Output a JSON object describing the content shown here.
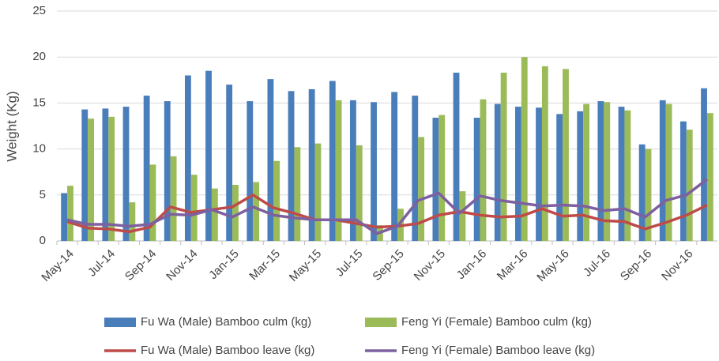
{
  "chart_data": {
    "type": "bar",
    "y_label": "Weight (Kg)",
    "categories": [
      "May-14",
      null,
      "Jul-14",
      null,
      "Sep-14",
      null,
      "Nov-14",
      null,
      "Jan-15",
      null,
      "Mar-15",
      null,
      "May-15",
      null,
      "Jul-15",
      null,
      "Sep-15",
      null,
      "Nov-15",
      null,
      "Jan-16",
      null,
      "Mar-16",
      null,
      "May-16",
      null,
      "Jul-16",
      null,
      "Sep-16",
      null,
      "Nov-16",
      null
    ],
    "series": [
      {
        "name": "Fu Wa (Male) Bamboo culm (kg)",
        "type": "bar",
        "color": "#4a7ebb",
        "values": [
          5.2,
          14.3,
          14.4,
          14.6,
          15.8,
          15.2,
          18,
          18.5,
          17,
          15.2,
          17.6,
          16.3,
          16.5,
          17.4,
          15.3,
          15.1,
          16.2,
          15.8,
          13.4,
          18.3,
          13.4,
          14.9,
          14.6,
          14.5,
          13.8,
          14.1,
          15.2,
          14.6,
          10.5,
          15.3,
          13,
          16.6
        ]
      },
      {
        "name": "Feng Yi (Female) Bamboo culm (kg)",
        "type": "bar",
        "color": "#9bbb59",
        "values": [
          6.0,
          13.3,
          13.5,
          4.2,
          8.3,
          9.2,
          7.2,
          5.7,
          6.1,
          6.4,
          8.7,
          10.2,
          10.6,
          15.3,
          10.4,
          1.7,
          3.5,
          11.3,
          13.7,
          5.4,
          15.4,
          18.3,
          20,
          19,
          18.7,
          14.9,
          15.1,
          14.2,
          10,
          14.9,
          12.1,
          13.9
        ]
      },
      {
        "name": "Fu Wa (Male) Bamboo leave (kg)",
        "type": "line",
        "color": "#be4b48",
        "values": [
          2.1,
          1.4,
          1.3,
          1.0,
          1.5,
          3.7,
          3.1,
          3.4,
          3.7,
          5.0,
          3.6,
          3.0,
          2.3,
          2.3,
          1.9,
          1.5,
          1.6,
          1.9,
          2.8,
          3.2,
          2.8,
          2.6,
          2.7,
          3.5,
          2.7,
          2.8,
          2.2,
          2.1,
          1.3,
          2.0,
          2.8,
          3.9
        ]
      },
      {
        "name": "Feng Yi (Female) Bamboo leave (kg)",
        "type": "line",
        "color": "#7d60a0",
        "values": [
          2.3,
          1.8,
          1.8,
          1.6,
          1.8,
          2.9,
          2.8,
          3.4,
          2.6,
          3.7,
          2.8,
          2.5,
          2.3,
          2.3,
          2.3,
          0.8,
          1.6,
          4.4,
          5.2,
          3.0,
          4.9,
          4.4,
          4.1,
          3.8,
          3.9,
          3.8,
          3.3,
          3.5,
          2.6,
          4.4,
          5.0,
          6.7
        ]
      }
    ],
    "ylim": [
      0,
      25
    ],
    "yticks": [
      0,
      5,
      10,
      15,
      20,
      25
    ],
    "grid": true
  }
}
